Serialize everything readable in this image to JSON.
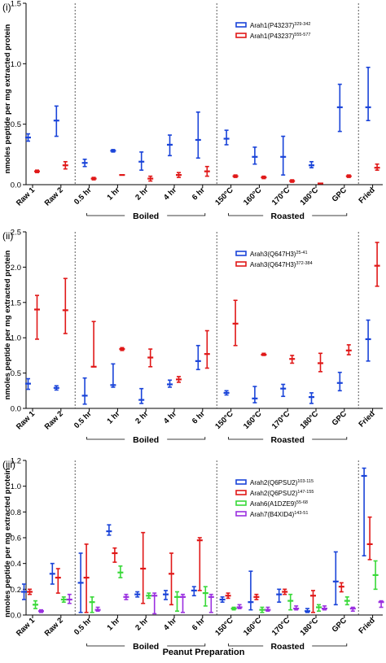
{
  "xlabel": "Peanut Preparation",
  "colors": {
    "blue": "#1a44d9",
    "red": "#e01818",
    "green": "#39d939",
    "purple": "#9b30e0"
  },
  "categories": [
    "Raw 1",
    "Raw 2",
    "0.5 hr",
    "1 hr",
    "2 hr",
    "4 hr",
    "6 hr",
    "150°C",
    "160°C",
    "170°C",
    "180°C",
    "GPC",
    "Fried"
  ],
  "group_labels": {
    "boiled": "Boiled",
    "roasted": "Roasted"
  },
  "chart_data": [
    {
      "panel": "(i)",
      "type": "scatter",
      "ylabel": "nmoles peptide per mg extracted protein",
      "ylim": [
        0,
        1.5
      ],
      "yticks": [
        "0.0",
        "0.5",
        "1.0",
        "1.5"
      ],
      "legend_position": "top-right",
      "series": [
        {
          "name": "Arah1(P43237)",
          "sup": "329-342",
          "color": "#1a44d9",
          "mean": [
            0.39,
            0.53,
            0.18,
            0.28,
            0.19,
            0.33,
            0.37,
            0.38,
            0.23,
            0.23,
            0.16,
            0.64,
            0.64
          ],
          "low": [
            0.36,
            0.4,
            0.15,
            0.27,
            0.12,
            0.24,
            0.22,
            0.33,
            0.17,
            0.08,
            0.14,
            0.44,
            0.53
          ],
          "high": [
            0.42,
            0.65,
            0.21,
            0.29,
            0.27,
            0.41,
            0.6,
            0.45,
            0.31,
            0.4,
            0.19,
            0.83,
            0.97
          ]
        },
        {
          "name": "Arah1(P43237)",
          "sup": "555-577",
          "color": "#e01818",
          "mean": [
            0.11,
            0.16,
            0.05,
            0.08,
            0.05,
            0.08,
            0.11,
            0.07,
            0.06,
            0.03,
            0.01,
            0.07,
            0.14
          ],
          "low": [
            0.1,
            0.13,
            0.04,
            0.08,
            0.03,
            0.06,
            0.07,
            0.06,
            0.05,
            0.02,
            0.01,
            0.06,
            0.12
          ],
          "high": [
            0.12,
            0.19,
            0.06,
            0.08,
            0.07,
            0.1,
            0.15,
            0.08,
            0.07,
            0.04,
            0.01,
            0.08,
            0.17
          ]
        }
      ]
    },
    {
      "panel": "(ii)",
      "type": "scatter",
      "ylabel": "nmoles peptide per mg extracted protein",
      "ylim": [
        0,
        2.5
      ],
      "yticks": [
        "0.0",
        "0.5",
        "1.0",
        "1.5",
        "2.0",
        "2.5"
      ],
      "legend_position": "top-right",
      "series": [
        {
          "name": "Arah3(Q647H3)",
          "sup": "25-41",
          "color": "#1a44d9",
          "mean": [
            0.35,
            0.29,
            0.18,
            0.33,
            0.12,
            0.34,
            0.67,
            0.22,
            0.14,
            0.28,
            0.16,
            0.36,
            0.98
          ],
          "low": [
            0.27,
            0.26,
            0.06,
            0.3,
            0.07,
            0.3,
            0.55,
            0.19,
            0.08,
            0.17,
            0.07,
            0.25,
            0.67
          ],
          "high": [
            0.42,
            0.32,
            0.43,
            0.63,
            0.28,
            0.4,
            0.89,
            0.25,
            0.31,
            0.34,
            0.22,
            0.51,
            1.25
          ]
        },
        {
          "name": "Arah3(Q647H3)",
          "sup": "372-384",
          "color": "#e01818",
          "mean": [
            1.4,
            1.39,
            0.59,
            0.84,
            0.72,
            0.41,
            0.77,
            1.2,
            0.76,
            0.7,
            0.64,
            0.82,
            2.02
          ],
          "low": [
            0.98,
            1.06,
            0.59,
            0.82,
            0.59,
            0.37,
            0.57,
            0.89,
            0.75,
            0.64,
            0.52,
            0.76,
            1.73
          ],
          "high": [
            1.6,
            1.84,
            1.23,
            0.86,
            0.84,
            0.45,
            1.1,
            1.53,
            0.78,
            0.75,
            0.78,
            0.9,
            2.35
          ]
        }
      ]
    },
    {
      "panel": "(iii)",
      "type": "scatter",
      "ylabel": "nmoles peptide per mg extracted protein",
      "ylim": [
        0,
        1.2
      ],
      "yticks": [
        "0.0",
        "0.2",
        "0.4",
        "0.6",
        "0.8",
        "1.0",
        "1.2"
      ],
      "legend_position": "top-right",
      "series": [
        {
          "name": "Arah2(Q6PSU2)",
          "sup": "103-115",
          "color": "#1a44d9",
          "mean": [
            0.18,
            0.32,
            0.25,
            0.65,
            0.16,
            0.16,
            0.19,
            0.12,
            0.1,
            0.16,
            0.03,
            0.26,
            1.08
          ],
          "low": [
            0.12,
            0.24,
            0.02,
            0.62,
            0.14,
            0.12,
            0.15,
            0.1,
            0.04,
            0.1,
            0.02,
            0.08,
            0.46
          ],
          "high": [
            0.24,
            0.4,
            0.48,
            0.7,
            0.18,
            0.19,
            0.22,
            0.14,
            0.34,
            0.2,
            0.05,
            0.49,
            1.14
          ]
        },
        {
          "name": "Arah2(Q6PSU2)",
          "sup": "147-155",
          "color": "#e01818",
          "mean": [
            0.18,
            0.29,
            0.29,
            0.48,
            0.36,
            0.32,
            0.58,
            0.15,
            0.14,
            0.18,
            0.15,
            0.22,
            0.55
          ],
          "low": [
            0.16,
            0.17,
            0.02,
            0.41,
            0.09,
            0.08,
            0.19,
            0.13,
            0.12,
            0.16,
            0.02,
            0.18,
            0.43
          ],
          "high": [
            0.2,
            0.36,
            0.55,
            0.52,
            0.64,
            0.48,
            0.6,
            0.17,
            0.16,
            0.2,
            0.19,
            0.25,
            0.76
          ]
        },
        {
          "name": "Arah6(A1DZE9)",
          "sup": "55-68",
          "color": "#39d939",
          "mean": [
            0.08,
            0.12,
            0.1,
            0.33,
            0.15,
            0.14,
            0.17,
            0.05,
            0.04,
            0.11,
            0.06,
            0.11,
            0.31
          ],
          "low": [
            0.05,
            0.1,
            0.02,
            0.29,
            0.13,
            0.03,
            0.07,
            0.04,
            0.02,
            0.04,
            0.03,
            0.08,
            0.2
          ],
          "high": [
            0.11,
            0.14,
            0.14,
            0.38,
            0.17,
            0.18,
            0.22,
            0.06,
            0.06,
            0.16,
            0.08,
            0.14,
            0.42
          ]
        },
        {
          "name": "Arah7(B4XID4)",
          "sup": "143-51",
          "color": "#9b30e0",
          "mean": [
            0.03,
            0.12,
            0.04,
            0.14,
            0.15,
            0.14,
            0.14,
            0.06,
            0.04,
            0.05,
            0.05,
            0.05,
            0.1
          ],
          "low": [
            0.02,
            0.09,
            0.03,
            0.12,
            0.01,
            0.02,
            0.02,
            0.05,
            0.03,
            0.04,
            0.04,
            0.03,
            0.06
          ],
          "high": [
            0.04,
            0.16,
            0.06,
            0.16,
            0.17,
            0.16,
            0.16,
            0.08,
            0.06,
            0.07,
            0.07,
            0.06,
            0.11
          ]
        }
      ]
    }
  ]
}
